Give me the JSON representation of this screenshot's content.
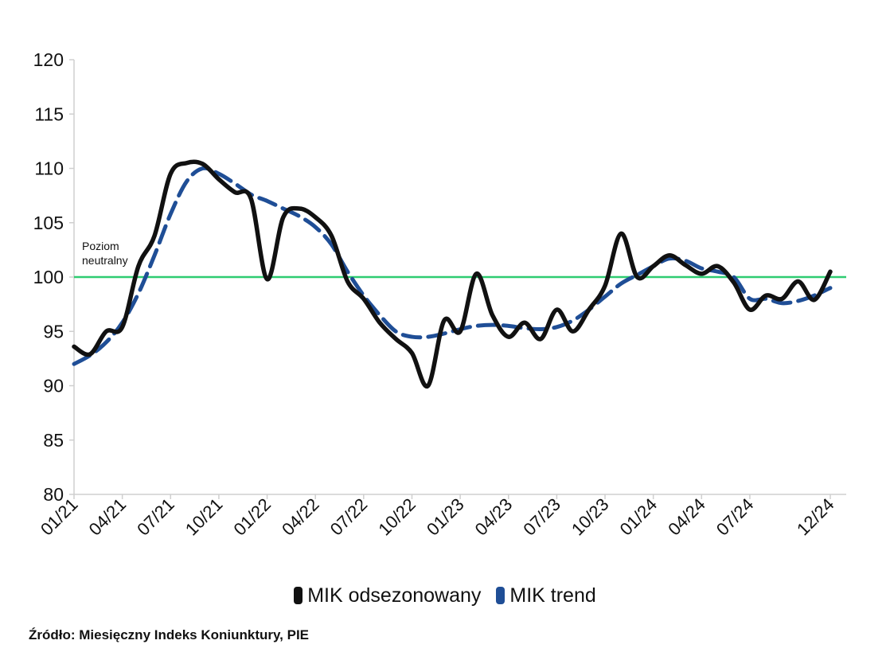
{
  "chart_data": {
    "type": "line",
    "x": [
      "01/21",
      "02/21",
      "03/21",
      "04/21",
      "05/21",
      "06/21",
      "07/21",
      "08/21",
      "09/21",
      "10/21",
      "11/21",
      "12/21",
      "01/22",
      "02/22",
      "03/22",
      "04/22",
      "05/22",
      "06/22",
      "07/22",
      "08/22",
      "09/22",
      "10/22",
      "11/22",
      "12/22",
      "01/23",
      "02/23",
      "03/23",
      "04/23",
      "05/23",
      "06/23",
      "07/23",
      "08/23",
      "09/23",
      "10/23",
      "11/23",
      "12/23",
      "01/24",
      "02/24",
      "03/24",
      "04/24",
      "05/24",
      "06/24",
      "07/24",
      "08/24",
      "09/24",
      "10/24",
      "11/24",
      "12/24"
    ],
    "tick_labels": [
      "01/21",
      "04/21",
      "07/21",
      "10/21",
      "01/22",
      "04/22",
      "07/22",
      "10/22",
      "01/23",
      "04/23",
      "07/23",
      "10/23",
      "01/24",
      "04/24",
      "07/24",
      "12/24"
    ],
    "series": [
      {
        "name": "MIK odsezonowany",
        "color": "#111111",
        "style": "solid",
        "values": [
          93.6,
          92.9,
          95.0,
          95.4,
          101.0,
          103.8,
          109.5,
          110.5,
          110.4,
          109.0,
          107.8,
          107.2,
          99.8,
          105.5,
          106.3,
          105.5,
          103.8,
          99.6,
          98.0,
          95.8,
          94.3,
          93.0,
          90.0,
          96.0,
          95.0,
          100.3,
          96.5,
          94.5,
          95.8,
          94.3,
          97.0,
          95.0,
          97.0,
          99.2,
          104.0,
          100.0,
          101.0,
          102.0,
          101.1,
          100.3,
          101.0,
          99.5,
          97.0,
          98.3,
          98.0,
          99.6,
          97.9,
          100.5
        ]
      },
      {
        "name": "MIK trend",
        "color": "#1f4e96",
        "style": "dashed",
        "values": [
          92.0,
          92.8,
          94.0,
          95.8,
          98.5,
          102.0,
          105.8,
          108.8,
          110.0,
          109.5,
          108.6,
          107.6,
          107.0,
          106.3,
          105.6,
          104.6,
          103.0,
          100.5,
          98.3,
          96.5,
          95.0,
          94.5,
          94.5,
          94.8,
          95.2,
          95.5,
          95.6,
          95.5,
          95.3,
          95.2,
          95.4,
          96.0,
          97.0,
          98.2,
          99.4,
          100.2,
          101.0,
          101.7,
          101.5,
          100.8,
          100.5,
          100.0,
          98.0,
          98.0,
          97.6,
          97.8,
          98.3,
          99.0
        ]
      }
    ],
    "reference_line": {
      "value": 100,
      "color": "#2ecc71",
      "label": "Poziom neutralny"
    },
    "ylim": [
      80,
      120
    ],
    "yticks": [
      80,
      85,
      90,
      95,
      100,
      105,
      110,
      115,
      120
    ],
    "grid": false,
    "legend_placement": "bottom-center",
    "xlabel": "",
    "ylabel": "",
    "title": ""
  },
  "source": "Źródło: Miesięczny Indeks Koniunktury, PIE"
}
